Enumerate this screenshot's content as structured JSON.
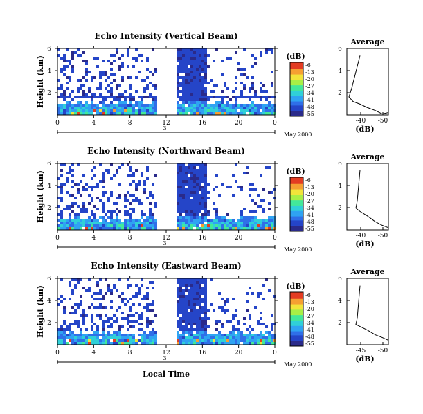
{
  "chart_data": [
    {
      "type": "heatmap",
      "title": "Echo Intensity (Vertical Beam)",
      "ylabel": "Height (km)",
      "yticks": [
        "6",
        "4",
        "2"
      ],
      "ylim": [
        0,
        6
      ],
      "xticks": [
        "0",
        "4",
        "8",
        "12",
        "16",
        "20",
        "0"
      ],
      "xlim": [
        0,
        24
      ],
      "date_marker": "3",
      "date_label": "May 2000",
      "colorbar": {
        "title": "(dB)",
        "ticks": [
          "-6",
          "-13",
          "-20",
          "-27",
          "-34",
          "-41",
          "-48",
          "-55"
        ]
      },
      "data_gap_hours": [
        11,
        13
      ],
      "profile": {
        "title": "Average",
        "yticks": [
          "6",
          "4",
          "2"
        ],
        "xticks": [
          "-40",
          "-50"
        ],
        "xlabel": "(dB)"
      }
    },
    {
      "type": "heatmap",
      "title": "Echo Intensity (Northward Beam)",
      "ylabel": "Height (km)",
      "yticks": [
        "6",
        "4",
        "2"
      ],
      "ylim": [
        0,
        6
      ],
      "xticks": [
        "0",
        "4",
        "8",
        "12",
        "16",
        "20",
        "0"
      ],
      "xlim": [
        0,
        24
      ],
      "date_marker": "3",
      "date_label": "May 2000",
      "colorbar": {
        "title": "(dB)",
        "ticks": [
          "-6",
          "-13",
          "-20",
          "-27",
          "-34",
          "-41",
          "-48",
          "-55"
        ]
      },
      "data_gap_hours": [
        11,
        13
      ],
      "profile": {
        "title": "Average",
        "yticks": [
          "6",
          "4",
          "2"
        ],
        "xticks": [
          "-40",
          "-50"
        ],
        "xlabel": "(dB)"
      }
    },
    {
      "type": "heatmap",
      "title": "Echo Intensity (Eastward Beam)",
      "ylabel": "Height (km)",
      "yticks": [
        "6",
        "4",
        "2"
      ],
      "ylim": [
        0,
        6
      ],
      "xticks": [
        "0",
        "4",
        "8",
        "12",
        "16",
        "20",
        "0"
      ],
      "xlim": [
        0,
        24
      ],
      "date_marker": "3",
      "date_label": "May 2000",
      "xlabel": "Local Time",
      "colorbar": {
        "title": "(dB)",
        "ticks": [
          "-6",
          "-13",
          "-20",
          "-27",
          "-34",
          "-41",
          "-48",
          "-55"
        ]
      },
      "data_gap_hours": [
        11,
        13
      ],
      "profile": {
        "title": "Average",
        "yticks": [
          "6",
          "4",
          "2"
        ],
        "xticks": [
          "-45",
          "-50"
        ],
        "xlabel": "(dB)"
      }
    }
  ]
}
